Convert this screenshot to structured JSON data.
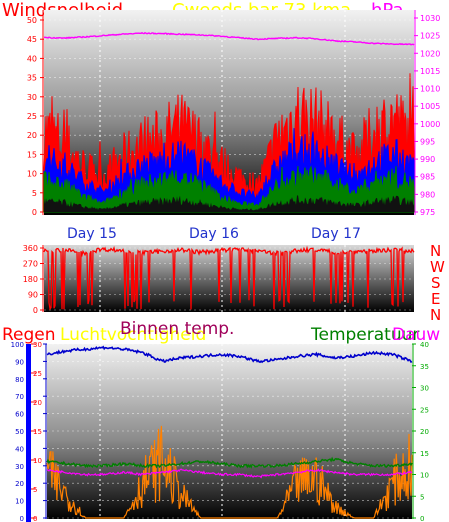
{
  "colors": {
    "wind": "#ff0000",
    "wind_avg": "#0000ff",
    "wind_min": "#008000",
    "pressure": "#ff00ff",
    "direction": "#ff0000",
    "humidity": "#0000cc",
    "inside_temp": "#cc00cc",
    "outside_temp": "#008000",
    "dew": "#ff00ff",
    "rain": "#ff8000",
    "day_label": "#2233cc",
    "left_axis_text": "#ff0000",
    "right_axis_text": "#ff00ff",
    "green_axis_text": "#00aa00",
    "rain_axis": "#0000ff"
  },
  "header": {
    "wind_title": "Windsnelheid",
    "pressure_title": "Cweeds bar 73 kma",
    "pressure_unit": "hPa"
  },
  "days": {
    "day1": "Day 15",
    "day2": "Day 16",
    "day3": "Day 17"
  },
  "direction_labels": {
    "n1": "N",
    "w": "W",
    "s": "S",
    "e": "E",
    "n2": "N"
  },
  "bottom_header": {
    "rain": "Regen",
    "humidity": "Luchtvochtigheid",
    "inside_temp": "Binnen temp.",
    "temperature": "Temperatuur",
    "dew": "Dauw"
  },
  "chart_data": [
    {
      "type": "line",
      "title": "",
      "x_labels": [
        "Day 15",
        "Day 16",
        "Day 17"
      ],
      "y_left": {
        "label": "Windsnelheid",
        "range": [
          0,
          50
        ],
        "ticks": [
          0,
          5,
          10,
          15,
          20,
          25,
          30,
          35,
          40,
          45,
          50
        ]
      },
      "y_right": {
        "label": "hPa",
        "range": [
          975,
          1030
        ],
        "ticks": [
          975,
          980,
          985,
          990,
          995,
          1000,
          1005,
          1010,
          1015,
          1020,
          1025,
          1030
        ]
      },
      "series": [
        {
          "name": "pressure",
          "axis": "right",
          "values": [
            1024.5,
            1024.3,
            1024.6,
            1025,
            1025.4,
            1025.7,
            1025.6,
            1025.4,
            1025.2,
            1024.9,
            1024.4,
            1024.0,
            1024.2,
            1024.4,
            1024.1,
            1023.5,
            1023.2,
            1022.8,
            1022.6,
            1022.5
          ]
        },
        {
          "name": "wind_max",
          "axis": "left",
          "values": [
            21,
            18,
            12,
            9,
            14,
            17,
            19,
            22,
            18,
            13,
            9,
            7,
            19,
            25,
            23,
            19,
            14,
            21,
            24,
            18
          ]
        },
        {
          "name": "wind_avg",
          "axis": "left",
          "values": [
            14,
            12,
            8,
            5,
            9,
            12,
            13,
            15,
            12,
            8,
            5,
            4,
            12,
            16,
            15,
            12,
            9,
            13,
            15,
            12
          ]
        },
        {
          "name": "wind_min",
          "axis": "left",
          "values": [
            8,
            7,
            4,
            2,
            5,
            7,
            8,
            9,
            7,
            4,
            2,
            2,
            7,
            9,
            9,
            7,
            5,
            8,
            9,
            7
          ]
        }
      ]
    },
    {
      "type": "line",
      "title": "",
      "y_left": {
        "label": "",
        "range": [
          0,
          360
        ],
        "ticks": [
          0,
          90,
          180,
          270,
          360
        ]
      },
      "series": [
        {
          "name": "direction",
          "values": [
            340,
            350,
            330,
            355,
            345,
            330,
            340,
            350,
            335,
            345,
            355,
            340,
            330,
            345,
            350,
            335,
            340,
            345,
            350,
            340
          ]
        }
      ]
    },
    {
      "type": "line",
      "title": "",
      "y_left_rain": {
        "label": "Regen",
        "range": [
          0,
          30
        ],
        "ticks": [
          0,
          5,
          10,
          15,
          20,
          25,
          30
        ]
      },
      "y_left_hum": {
        "label": "Luchtvochtigheid",
        "range": [
          0,
          100
        ],
        "ticks": [
          0,
          10,
          20,
          30,
          40,
          50,
          60,
          70,
          80,
          90,
          100
        ]
      },
      "y_right": {
        "label": "Temperatuur",
        "range": [
          0,
          40
        ],
        "ticks": [
          0,
          5,
          10,
          15,
          20,
          25,
          30,
          35,
          40
        ]
      },
      "series": [
        {
          "name": "humidity",
          "axis": "hum",
          "values": [
            94,
            96,
            97,
            98,
            97,
            95,
            90,
            92,
            93,
            94,
            93,
            90,
            91,
            93,
            94,
            92,
            93,
            95,
            94,
            90
          ]
        },
        {
          "name": "temperature",
          "axis": "right",
          "values": [
            13,
            12.5,
            12,
            12,
            12.5,
            12,
            12,
            12.5,
            13,
            12.5,
            12,
            12,
            12,
            12.5,
            13,
            13.5,
            12.5,
            12,
            12,
            12.5
          ]
        },
        {
          "name": "dew",
          "axis": "right",
          "values": [
            11,
            10.5,
            10,
            10,
            10.5,
            10,
            10.5,
            11,
            10.5,
            10,
            10,
            9.5,
            10,
            10.5,
            11,
            10.5,
            10,
            10,
            10,
            10.5
          ]
        },
        {
          "name": "rain",
          "axis": "rain",
          "values": [
            8,
            4,
            0,
            0,
            0,
            6,
            10,
            4,
            0,
            0,
            0,
            0,
            0,
            6,
            7,
            2,
            0,
            0,
            6,
            9
          ]
        }
      ]
    }
  ]
}
